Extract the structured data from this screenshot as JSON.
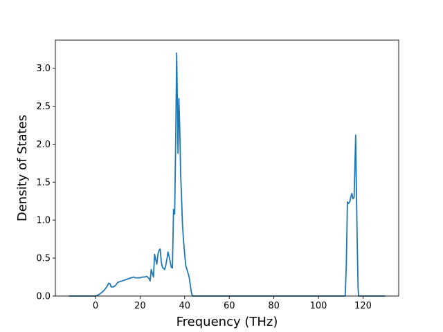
{
  "chart_data": {
    "type": "line",
    "title": "",
    "xlabel": "Frequency (THz)",
    "ylabel": "Density of States",
    "xlim": [
      -18,
      136
    ],
    "ylim": [
      0.0,
      3.37
    ],
    "xticks": [
      0,
      20,
      40,
      60,
      80,
      100,
      120
    ],
    "yticks": [
      0.0,
      0.5,
      1.0,
      1.5,
      2.0,
      2.5,
      3.0
    ],
    "xtick_labels": [
      "0",
      "20",
      "40",
      "60",
      "80",
      "100",
      "120"
    ],
    "ytick_labels": [
      "0.0",
      "0.5",
      "1.0",
      "1.5",
      "2.0",
      "2.5",
      "3.0"
    ],
    "grid": false,
    "line_color": "#1f77b4",
    "series": [
      {
        "x": [
          -12,
          -2,
          0,
          1,
          2,
          3,
          4,
          5,
          6,
          6.5,
          7,
          8,
          9,
          10,
          11,
          12,
          13,
          14,
          15,
          16,
          17,
          18,
          19,
          20,
          21,
          22,
          23,
          24,
          24.5,
          25,
          25.5,
          26,
          26.5,
          27,
          27.5,
          28,
          28.5,
          29,
          29.5,
          30,
          31,
          31.5,
          32,
          32.5,
          33,
          33.5,
          34,
          34.5,
          35,
          35.5,
          36,
          36.4,
          36.7,
          37,
          37.4,
          37.8,
          38.2,
          38.6,
          39,
          39.5,
          40,
          40.5,
          41,
          42,
          43,
          43.5,
          44,
          60,
          80,
          100,
          111,
          112,
          112.5,
          113,
          113.5,
          114,
          114.5,
          115,
          115.5,
          116,
          116.4,
          116.7,
          117,
          117.4,
          117.8,
          118,
          130
        ],
        "y": [
          0,
          0,
          0,
          0.01,
          0.03,
          0.05,
          0.08,
          0.12,
          0.17,
          0.16,
          0.12,
          0.12,
          0.14,
          0.18,
          0.19,
          0.2,
          0.21,
          0.22,
          0.23,
          0.24,
          0.25,
          0.24,
          0.24,
          0.24,
          0.25,
          0.25,
          0.26,
          0.23,
          0.2,
          0.35,
          0.3,
          0.25,
          0.55,
          0.48,
          0.42,
          0.55,
          0.6,
          0.62,
          0.45,
          0.38,
          0.35,
          0.4,
          0.48,
          0.58,
          0.52,
          0.45,
          0.38,
          0.37,
          1.14,
          1.08,
          2.1,
          3.2,
          2.6,
          1.88,
          2.6,
          2.2,
          1.6,
          1.3,
          0.95,
          0.72,
          0.55,
          0.4,
          0.35,
          0.25,
          0.05,
          0,
          0,
          0,
          0,
          0,
          0,
          0,
          0.4,
          1.24,
          1.22,
          1.24,
          1.3,
          1.35,
          1.28,
          1.3,
          1.75,
          2.12,
          1.45,
          0.7,
          0.1,
          0,
          0
        ]
      }
    ]
  }
}
